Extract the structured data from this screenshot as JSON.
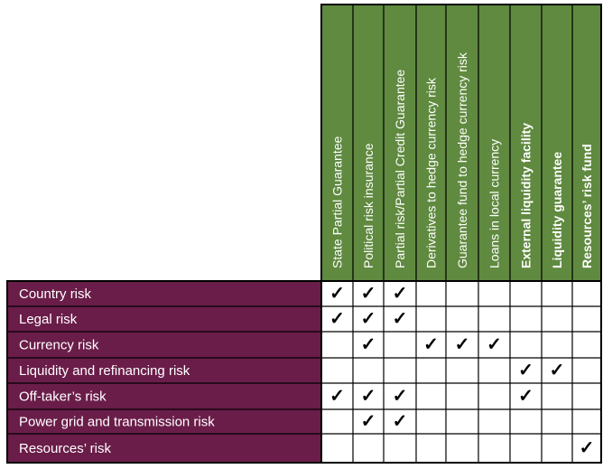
{
  "columns": [
    "State Partial Guarantee",
    "Political risk insurance",
    "Partial risk/Partial Credit Guarantee",
    "Derivatives to hedge currency risk",
    "Guarantee fund to hedge currency risk",
    "Loans in local currency",
    "External liquidity facility",
    "Liquidity guarantee",
    "Resources’ risk fund"
  ],
  "rows": [
    {
      "label": "Country risk",
      "checks": [
        true,
        true,
        true,
        false,
        false,
        false,
        false,
        false,
        false
      ]
    },
    {
      "label": "Legal risk",
      "checks": [
        true,
        true,
        true,
        false,
        false,
        false,
        false,
        false,
        false
      ]
    },
    {
      "label": "Currency risk",
      "checks": [
        false,
        true,
        false,
        true,
        true,
        true,
        false,
        false,
        false
      ]
    },
    {
      "label": "Liquidity and refinancing risk",
      "checks": [
        false,
        false,
        false,
        false,
        false,
        false,
        true,
        true,
        false
      ]
    },
    {
      "label": "Off-taker’s risk",
      "checks": [
        true,
        true,
        true,
        false,
        false,
        false,
        true,
        false,
        false
      ]
    },
    {
      "label": "Power grid and transmission risk",
      "checks": [
        false,
        true,
        true,
        false,
        false,
        false,
        false,
        false,
        false
      ]
    },
    {
      "label": "Resources’ risk",
      "checks": [
        false,
        false,
        false,
        false,
        false,
        false,
        false,
        false,
        true
      ]
    }
  ],
  "check_glyph": "✓",
  "colors": {
    "header_green": "#5f8a3f",
    "row_purple": "#6a1d49",
    "header_text": "#ffffff",
    "row_text": "#ffffff",
    "grid_line": "#000000",
    "check": "#000000"
  }
}
